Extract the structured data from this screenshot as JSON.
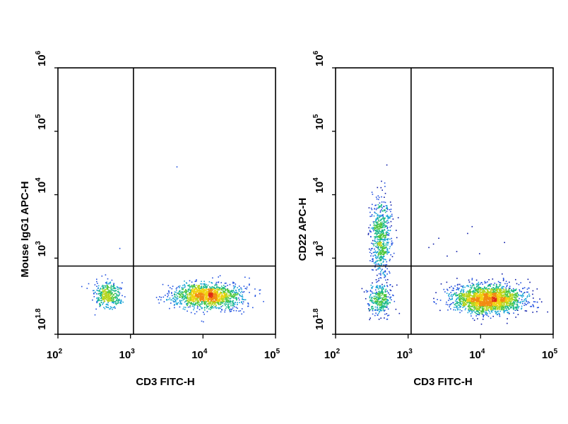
{
  "chart_data": [
    {
      "type": "scatter",
      "title": "",
      "xlabel": "CD3 FITC-H",
      "ylabel": "Mouse IgG1 APC-H",
      "xscale": "log",
      "yscale": "log",
      "xlim": [
        100,
        100000
      ],
      "ylim": [
        63.1,
        1000000
      ],
      "x_ticks": [
        {
          "base": "10",
          "exp": "2",
          "value": 100
        },
        {
          "base": "10",
          "exp": "3",
          "value": 1000
        },
        {
          "base": "10",
          "exp": "4",
          "value": 10000
        },
        {
          "base": "10",
          "exp": "5",
          "value": 100000
        }
      ],
      "y_ticks": [
        {
          "base": "10",
          "exp": "1.8",
          "value": 63.1
        },
        {
          "base": "10",
          "exp": "3",
          "value": 1000
        },
        {
          "base": "10",
          "exp": "4",
          "value": 10000
        },
        {
          "base": "10",
          "exp": "5",
          "value": 100000
        },
        {
          "base": "10",
          "exp": "6",
          "value": 1000000
        }
      ],
      "gate": {
        "x": 1100,
        "y": 750
      },
      "populations": [
        {
          "x_center": 480,
          "y_center": 260,
          "x_spread_decades": 0.09,
          "y_spread_decades": 0.1,
          "count": 380
        },
        {
          "x_center": 11500,
          "y_center": 260,
          "x_spread_decades": 0.23,
          "y_spread_decades": 0.1,
          "count": 1500
        }
      ],
      "outliers": [
        [
          4300,
          28000
        ],
        [
          700,
          1450
        ]
      ],
      "grid": false,
      "legend": "none"
    },
    {
      "type": "scatter",
      "title": "",
      "xlabel": "CD3 FITC-H",
      "ylabel": "CD22 APC-H",
      "xscale": "log",
      "yscale": "log",
      "xlim": [
        100,
        100000
      ],
      "ylim": [
        63.1,
        1000000
      ],
      "x_ticks": [
        {
          "base": "10",
          "exp": "2",
          "value": 100
        },
        {
          "base": "10",
          "exp": "3",
          "value": 1000
        },
        {
          "base": "10",
          "exp": "4",
          "value": 10000
        },
        {
          "base": "10",
          "exp": "5",
          "value": 100000
        }
      ],
      "y_ticks": [
        {
          "base": "10",
          "exp": "1.8",
          "value": 63.1
        },
        {
          "base": "10",
          "exp": "3",
          "value": 1000
        },
        {
          "base": "10",
          "exp": "4",
          "value": 10000
        },
        {
          "base": "10",
          "exp": "5",
          "value": 100000
        },
        {
          "base": "10",
          "exp": "6",
          "value": 1000000
        }
      ],
      "gate": {
        "x": 1100,
        "y": 750
      },
      "populations": [
        {
          "x_center": 420,
          "y_center": 2200,
          "x_spread_decades": 0.07,
          "y_spread_decades": 0.3,
          "count": 650
        },
        {
          "x_center": 400,
          "y_center": 230,
          "x_spread_decades": 0.08,
          "y_spread_decades": 0.12,
          "count": 350
        },
        {
          "x_center": 12500,
          "y_center": 230,
          "x_spread_decades": 0.24,
          "y_spread_decades": 0.11,
          "count": 2200
        }
      ],
      "outliers": [
        [
          1900,
          1500
        ],
        [
          2200,
          1700
        ],
        [
          3400,
          1100
        ],
        [
          6500,
          2500
        ],
        [
          7500,
          3200
        ],
        [
          4600,
          1300
        ],
        [
          2600,
          2100
        ],
        [
          500,
          30000
        ],
        [
          9500,
          1200
        ],
        [
          21000,
          1800
        ]
      ],
      "grid": false,
      "legend": "none"
    }
  ]
}
